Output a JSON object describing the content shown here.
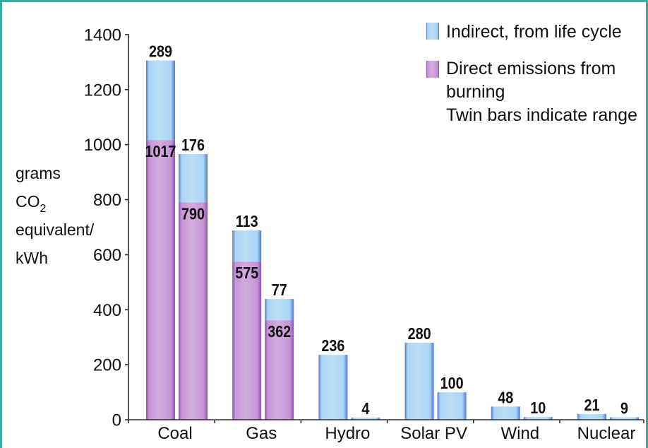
{
  "chart_data": {
    "type": "bar",
    "stacked": true,
    "categories": [
      "Coal",
      "Gas",
      "Hydro",
      "Solar PV",
      "Wind",
      "Nuclear"
    ],
    "series": [
      {
        "name": "Indirect, from life cycle",
        "color": "#a9d5f5",
        "edge_color": "#5677d2",
        "values": [
          [
            289,
            176
          ],
          [
            113,
            77
          ],
          [
            236,
            4
          ],
          [
            280,
            100
          ],
          [
            48,
            10
          ],
          [
            21,
            9
          ]
        ]
      },
      {
        "name": "Direct emissions from burning",
        "color": "#c794d6",
        "edge_color": "#8e50b4",
        "values": [
          [
            1017,
            790
          ],
          [
            575,
            362
          ],
          [
            null,
            null
          ],
          [
            null,
            null
          ],
          [
            null,
            null
          ],
          [
            null,
            null
          ]
        ]
      }
    ],
    "legend": {
      "position": "top-right",
      "note": "Twin bars indicate range"
    },
    "ylabel": [
      "grams",
      "CO2",
      "equivalent/",
      "kWh"
    ],
    "ylim": [
      0,
      1400
    ],
    "yticks": [
      0,
      200,
      400,
      600,
      800,
      1000,
      1200,
      1400
    ],
    "grid": false
  },
  "frame": {
    "color": "#3ea79f"
  }
}
